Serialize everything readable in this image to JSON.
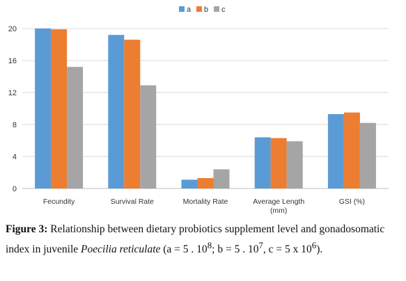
{
  "chart_data": {
    "type": "bar",
    "categories": [
      [
        "Fecundity"
      ],
      [
        "Survival Rate"
      ],
      [
        "Mortality Rate"
      ],
      [
        "Average Length",
        "(mm)"
      ],
      [
        "GSI (%)"
      ]
    ],
    "series": [
      {
        "name": "a",
        "color": "#5B9BD5",
        "values": [
          20,
          19.2,
          1.1,
          6.4,
          9.3
        ]
      },
      {
        "name": "b",
        "color": "#ED7D31",
        "values": [
          19.9,
          18.6,
          1.3,
          6.3,
          9.5
        ]
      },
      {
        "name": "c",
        "color": "#A5A5A5",
        "values": [
          15.2,
          12.9,
          2.4,
          5.9,
          8.2
        ]
      }
    ],
    "yticks": [
      0,
      4,
      8,
      12,
      16,
      20
    ],
    "ylim": [
      0,
      20
    ],
    "grid": true,
    "legend_position": "top-center"
  },
  "caption": {
    "label": "Figure 3:",
    "text_1": " Relationship between dietary probiotics supplement level and gonadosomatic index in juvenile ",
    "species": "Poecilia reticulate",
    "text_2": " (a = 5 . 10",
    "exp_a": "8",
    "text_3": "; b = 5 . 10",
    "exp_b": "7",
    "text_4": ", c = 5 x 10",
    "exp_c": "6",
    "text_5": ")."
  }
}
